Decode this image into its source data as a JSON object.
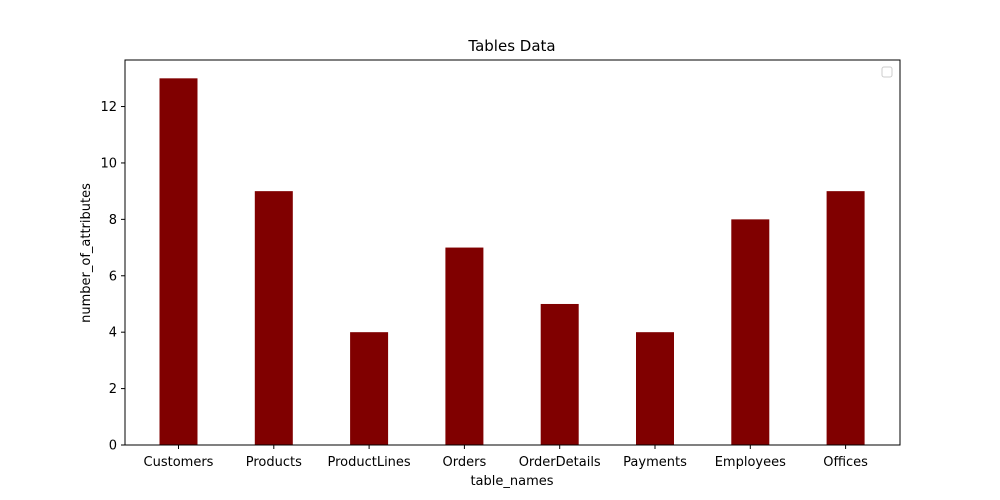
{
  "chart_data": {
    "type": "bar",
    "title": "Tables Data",
    "xlabel": "table_names",
    "ylabel": "number_of_attributes",
    "categories": [
      "Customers",
      "Products",
      "ProductLines",
      "Orders",
      "OrderDetails",
      "Payments",
      "Employees",
      "Offices"
    ],
    "values": [
      13,
      9,
      4,
      7,
      5,
      4,
      8,
      9
    ],
    "ylim": [
      0,
      13.65
    ],
    "yticks": [
      0,
      2,
      4,
      6,
      8,
      10,
      12
    ],
    "grid": false,
    "legend": "top-right",
    "bar_color": "#800000"
  }
}
